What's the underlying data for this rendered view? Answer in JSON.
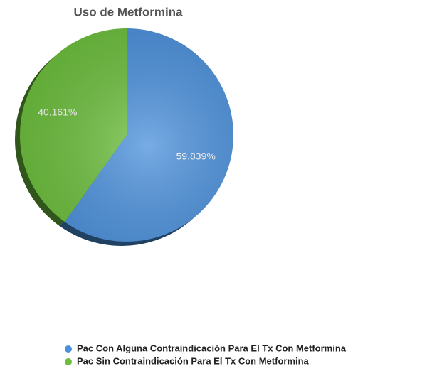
{
  "chart_data": {
    "type": "pie",
    "title": "Uso de Metformina",
    "categories": [
      "Pac Con Alguna Contraindicación Para El Tx Con Metformina",
      "Pac Sin Contraindicación Para El Tx Con Metformina"
    ],
    "values": [
      59.839,
      40.161
    ],
    "value_labels": [
      "59.839%",
      "40.161%"
    ],
    "colors": [
      "#4a90dc",
      "#6cbf3c"
    ]
  }
}
